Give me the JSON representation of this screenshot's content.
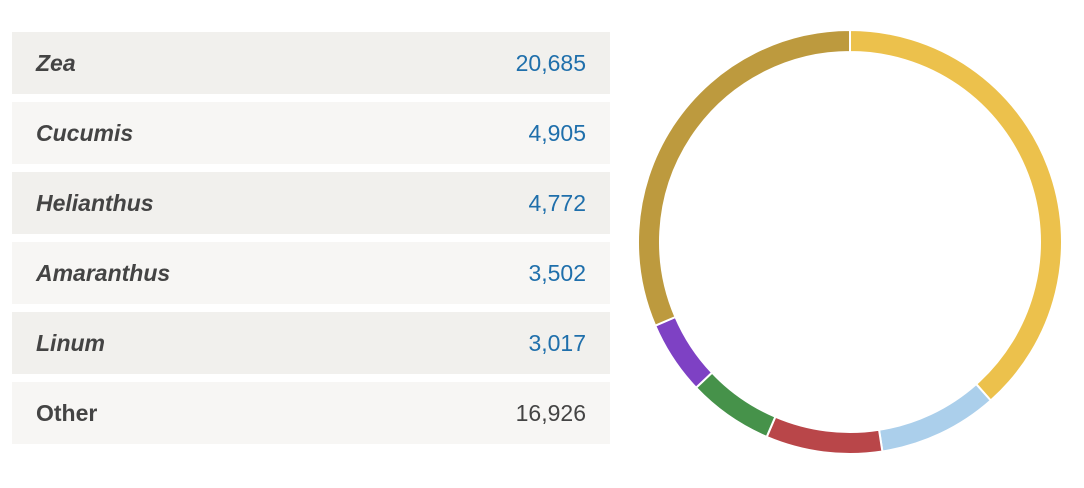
{
  "chart_data": {
    "type": "pie",
    "variant": "donut",
    "categories": [
      "Zea",
      "Cucumis",
      "Helianthus",
      "Amaranthus",
      "Linum",
      "Other"
    ],
    "values": [
      20685,
      4905,
      4772,
      3502,
      3017,
      16926
    ],
    "display_values": [
      "20,685",
      "4,905",
      "4,772",
      "3,502",
      "3,017",
      "16,926"
    ],
    "colors": [
      "#ecc14c",
      "#abcfeb",
      "#b94649",
      "#46924a",
      "#7e41c4",
      "#bd9a3e"
    ],
    "italic": [
      true,
      true,
      true,
      true,
      true,
      false
    ],
    "linked": [
      true,
      true,
      true,
      true,
      true,
      false
    ],
    "legend_placement": "left"
  }
}
